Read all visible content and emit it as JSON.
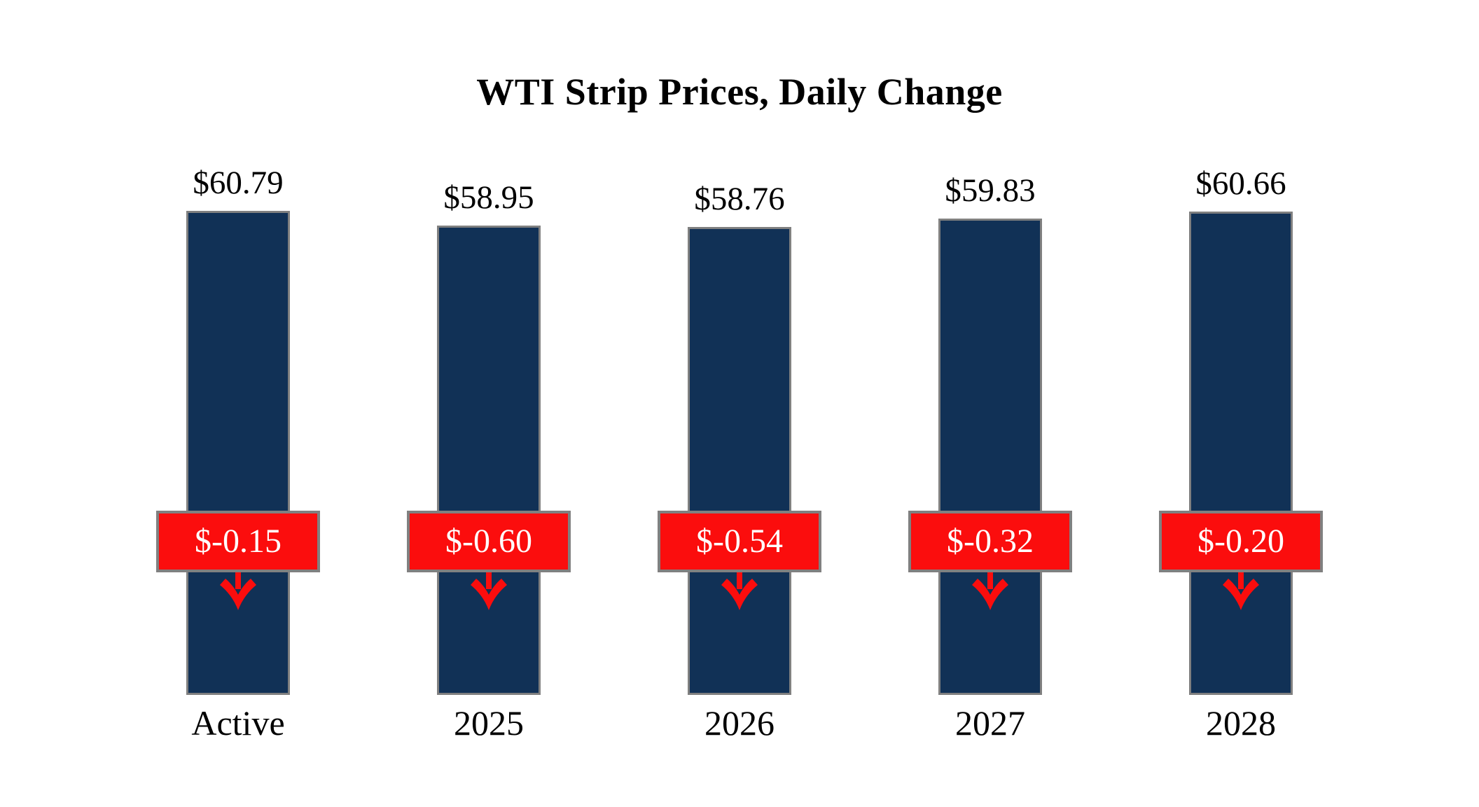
{
  "title": "WTI Strip Prices, Daily Change",
  "colors": {
    "bar_fill": "#113156",
    "bar_border": "#808080",
    "change_fill": "#FB0D0D",
    "change_border": "#808080",
    "change_text": "#FFFFFF"
  },
  "chart_data": {
    "type": "bar",
    "title": "WTI Strip Prices, Daily Change",
    "categories": [
      "Active",
      "2025",
      "2026",
      "2027",
      "2028"
    ],
    "series": [
      {
        "name": "WTI Strip Price",
        "values": [
          60.79,
          58.95,
          58.76,
          59.83,
          60.66
        ]
      },
      {
        "name": "Daily Change",
        "values": [
          -0.15,
          -0.6,
          -0.54,
          -0.32,
          -0.2
        ]
      }
    ],
    "value_labels": [
      "$60.79",
      "$58.95",
      "$58.76",
      "$59.83",
      "$60.66"
    ],
    "change_labels": [
      "$-0.15",
      "$-0.60",
      "$-0.54",
      "$-0.32",
      "$-0.20"
    ],
    "xlabel": "",
    "ylabel": "",
    "ylim": [
      0,
      62
    ],
    "grid": false,
    "legend": "none",
    "annotations": "red boxes with white daily-change values and red down arrows overlaid on each bar"
  }
}
